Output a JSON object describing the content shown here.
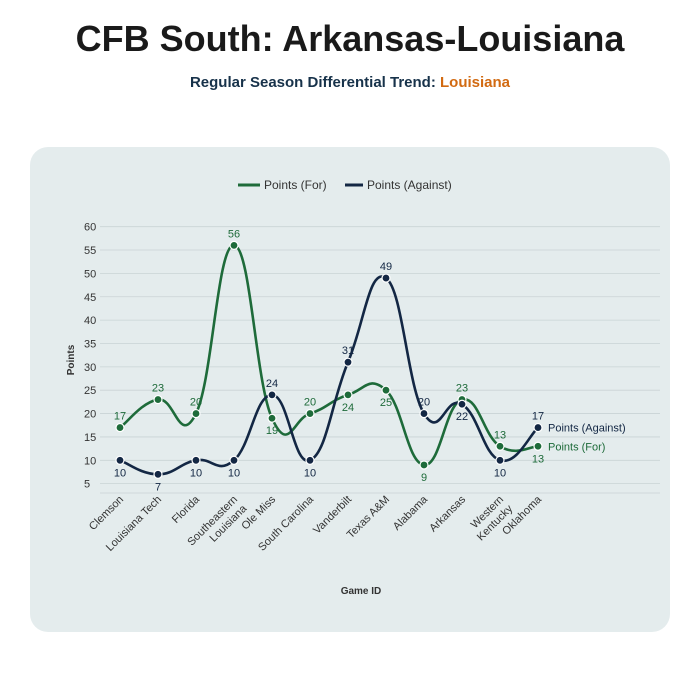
{
  "header": {
    "title": "CFB South: Arkansas-Louisiana",
    "subtitle_prefix": "Regular Season Differential Trend: ",
    "subtitle_team": "Louisiana"
  },
  "colors": {
    "for": "#1e6b3a",
    "against": "#132744",
    "accent": "#d26a11",
    "panel": "#e4eced"
  },
  "chart_data": {
    "type": "line",
    "xlabel": "Game ID",
    "ylabel": "Points",
    "ylim": [
      3,
      61
    ],
    "yticks": [
      5,
      10,
      15,
      20,
      25,
      30,
      35,
      40,
      45,
      50,
      55,
      60
    ],
    "grid": true,
    "legend_position": "top-center",
    "categories": [
      "Clemson",
      "Louisiana Tech",
      "Florida",
      "Southeastern Louisiana",
      "Ole Miss",
      "South Carolina",
      "Vanderbilt",
      "Texas A&M",
      "Alabama",
      "Arkansas",
      "Western Kentucky",
      "Oklahoma"
    ],
    "series": [
      {
        "name": "Points (For)",
        "values": [
          17,
          23,
          20,
          56,
          19,
          20,
          24,
          25,
          9,
          23,
          13,
          13
        ],
        "end_label": "Points (For)"
      },
      {
        "name": "Points (Against)",
        "values": [
          10,
          7,
          10,
          10,
          24,
          10,
          31,
          49,
          20,
          22,
          10,
          17
        ],
        "end_label": "Points (Against)"
      }
    ]
  }
}
